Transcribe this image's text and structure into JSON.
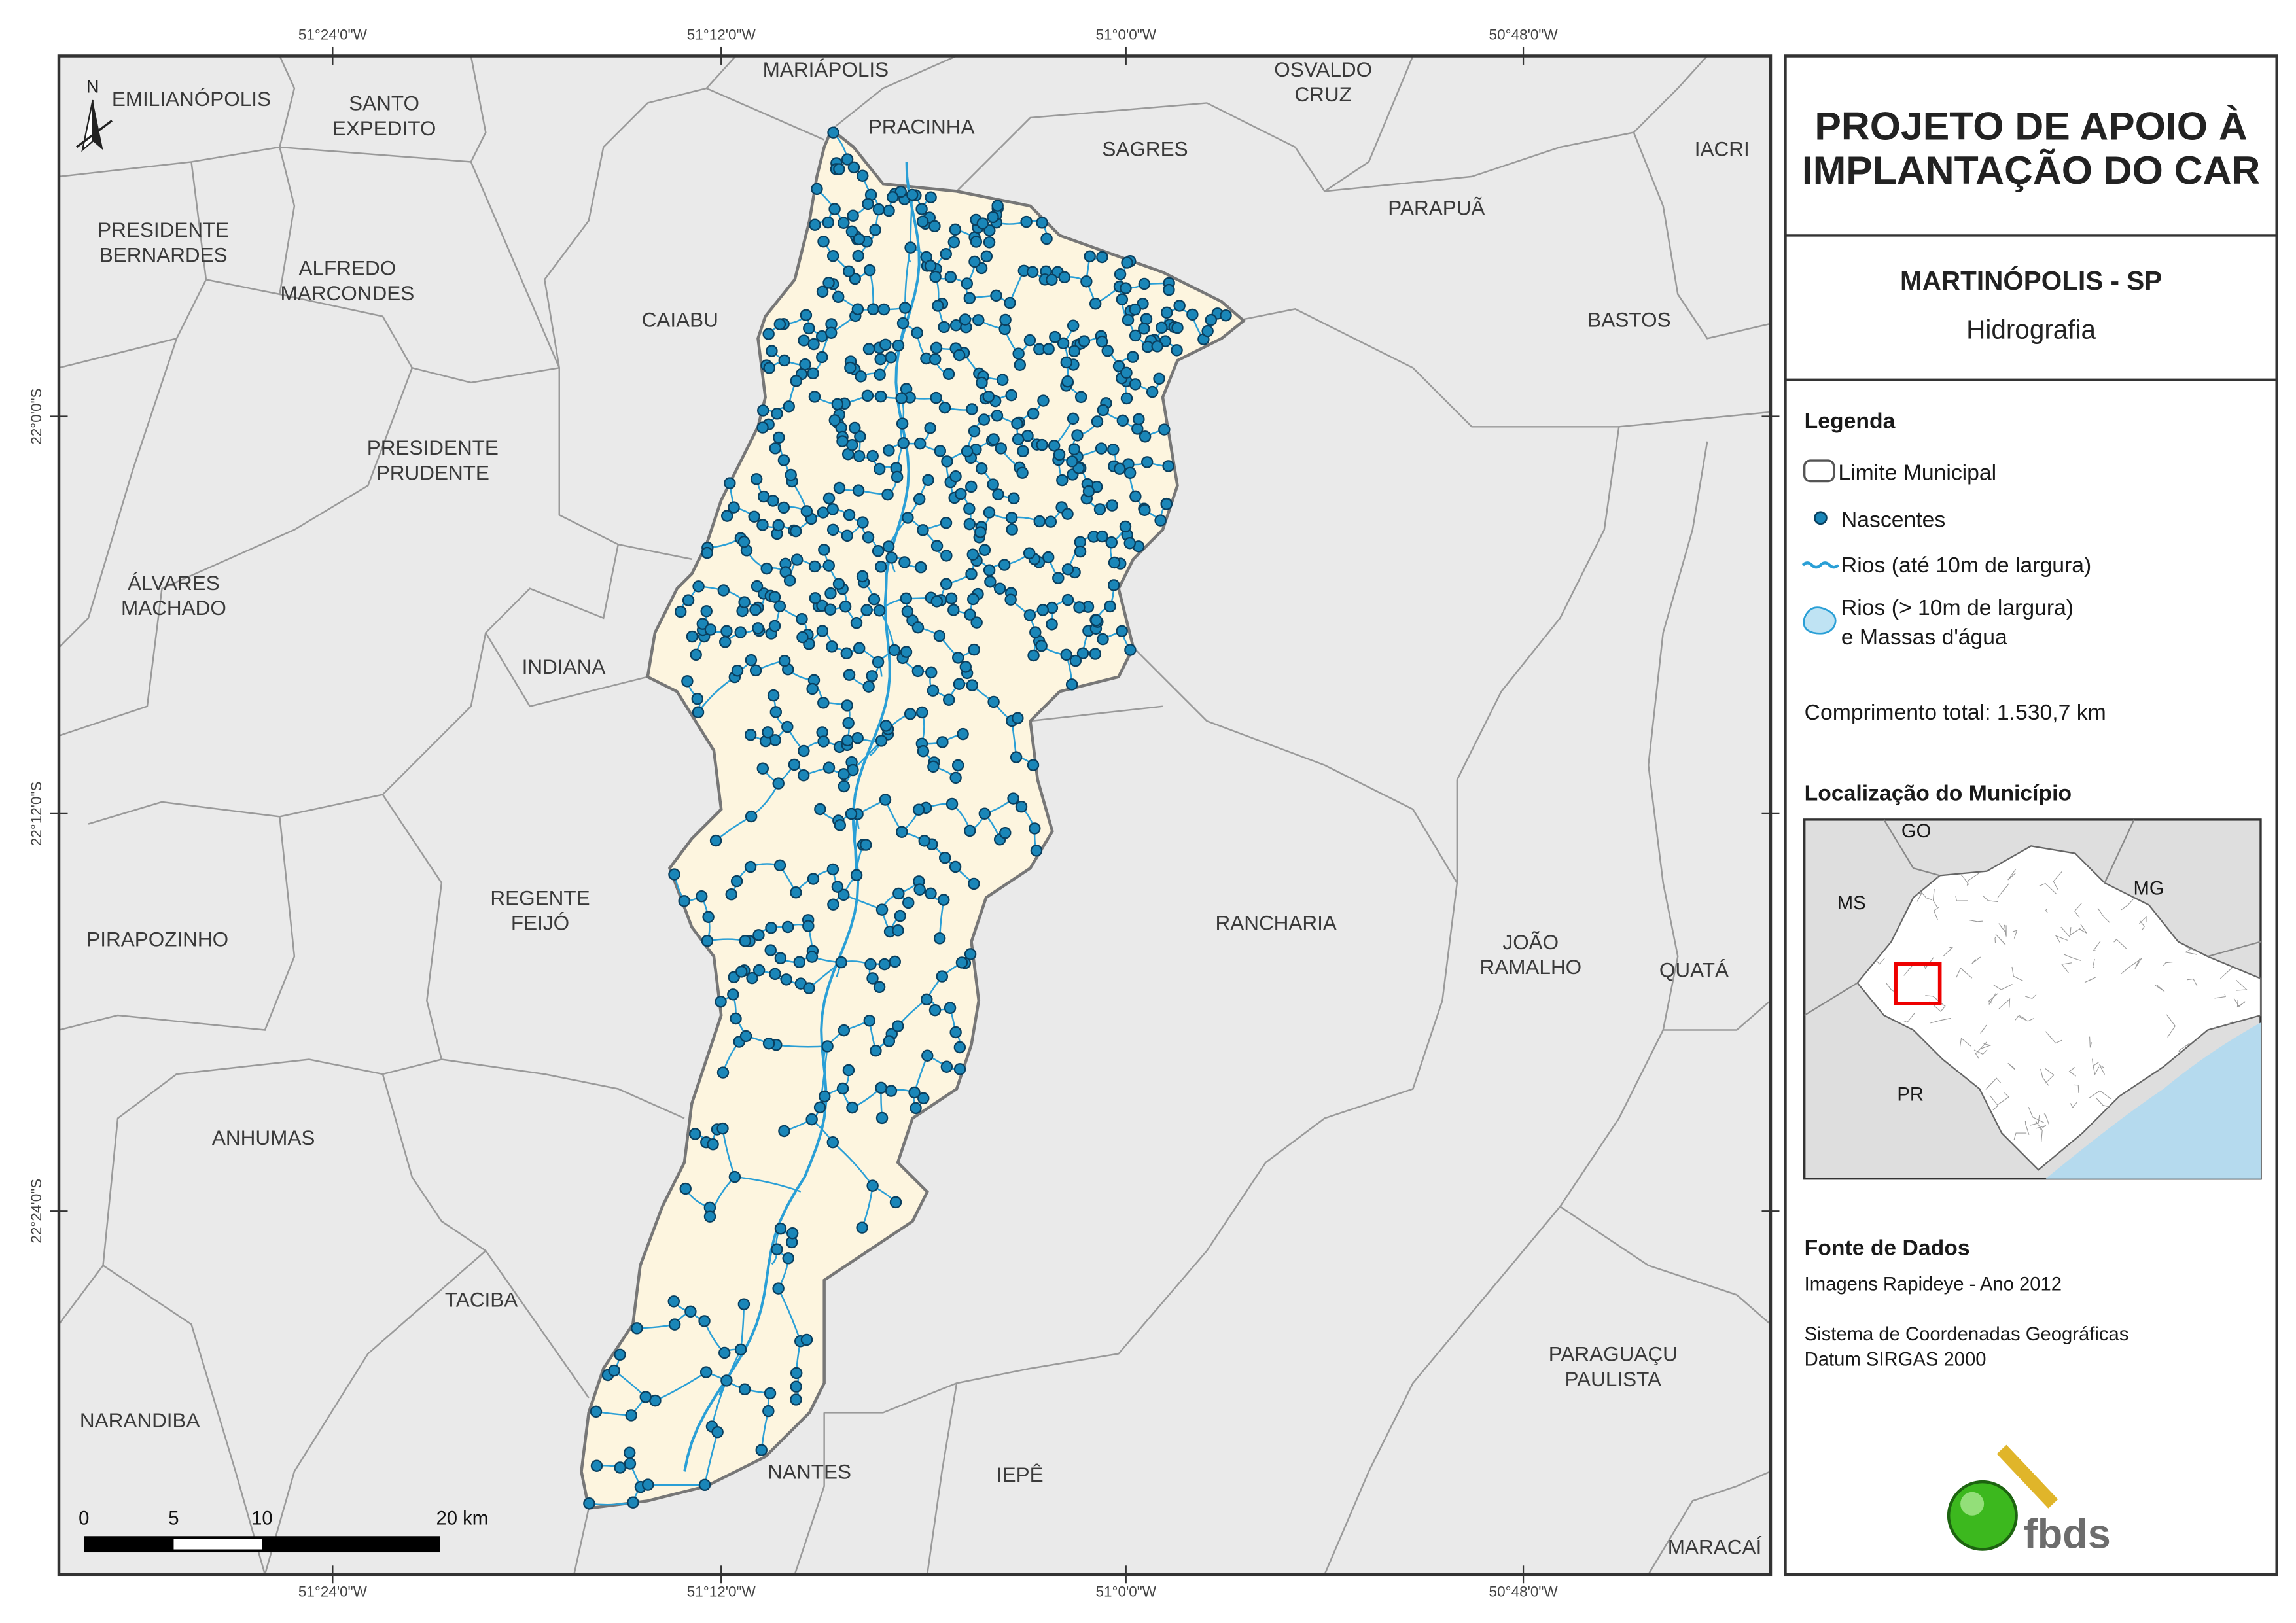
{
  "map": {
    "north": "N",
    "coords_top": [
      "51°24'0\"W",
      "51°12'0\"W",
      "51°0'0\"W",
      "50°48'0\"W"
    ],
    "coords_bottom": [
      "51°24'0\"W",
      "51°12'0\"W",
      "51°0'0\"W",
      "50°48'0\"W"
    ],
    "coords_left": [
      "22°0'0\"S",
      "22°12'0\"S",
      "22°24'0\"S"
    ],
    "municipalities": [
      [
        "EMILIANÓPOLIS"
      ],
      [
        "SANTO",
        "EXPEDITO"
      ],
      [
        "MARIÁPOLIS"
      ],
      [
        "PRACINHA"
      ],
      [
        "OSVALDO",
        "CRUZ"
      ],
      [
        "SAGRES"
      ],
      [
        "IACRI"
      ],
      [
        "PRESIDENTE",
        "BERNARDES"
      ],
      [
        "ALFREDO",
        "MARCONDES"
      ],
      [
        "PARAPUÃ"
      ],
      [
        "CAIABU"
      ],
      [
        "BASTOS"
      ],
      [
        "PRESIDENTE",
        "PRUDENTE"
      ],
      [
        "ÁLVARES",
        "MACHADO"
      ],
      [
        "INDIANA"
      ],
      [
        "REGENTE",
        "FEIJÓ"
      ],
      [
        "PIRAPOZINHO"
      ],
      [
        "RANCHARIA"
      ],
      [
        "JOÃO",
        "RAMALHO"
      ],
      [
        "QUATÁ"
      ],
      [
        "ANHUMAS"
      ],
      [
        "TACIBA"
      ],
      [
        "PARAGUAÇU",
        "PAULISTA"
      ],
      [
        "NARANDIBA"
      ],
      [
        "NANTES"
      ],
      [
        "IEPÊ"
      ],
      [
        "MARACAÍ"
      ]
    ],
    "scale_labels": [
      "0",
      "5",
      "10",
      "20 km"
    ]
  },
  "panel": {
    "title": [
      "PROJETO DE APOIO À",
      "IMPLANTAÇÃO DO CAR"
    ],
    "subtitle": "MARTINÓPOLIS - SP",
    "theme": "Hidrografia",
    "legend_title": "Legenda",
    "legend": [
      "Limite Municipal",
      "Nascentes",
      "Rios (até 10m de largura)",
      [
        "Rios (> 10m de largura)",
        "e Massas d'água"
      ]
    ],
    "total_length": "Comprimento total:  1.530,7 km",
    "location_title": "Localização do Município",
    "inset_labels": [
      "GO",
      "MS",
      "MG",
      "PR"
    ],
    "source_title": "Fonte de Dados",
    "source_lines": [
      "Imagens Rapideye - Ano 2012",
      "Sistema de Coordenadas Geográficas",
      "Datum SIRGAS 2000"
    ],
    "logo": "fbds"
  }
}
